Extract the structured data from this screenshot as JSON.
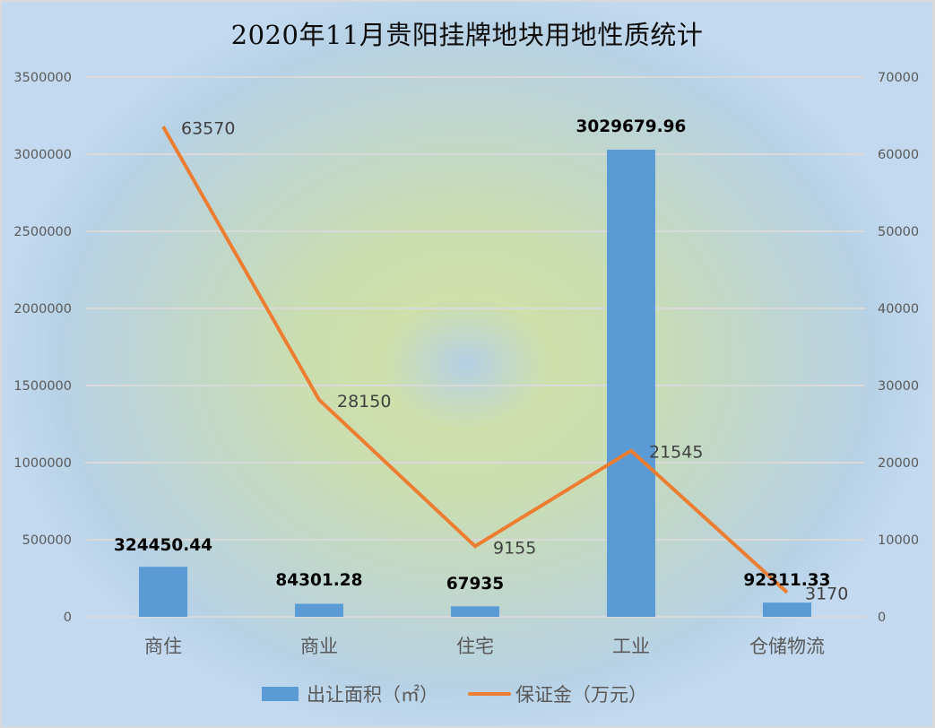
{
  "title": "2020年11月贵阳挂牌地块用地性质统计",
  "colors": {
    "bar": "#5b9bd5",
    "line": "#ed7d31",
    "gridline": "#d9d9d9",
    "axis_text": "#595959"
  },
  "axes": {
    "left_ticks": [
      "0",
      "500000",
      "1000000",
      "1500000",
      "2000000",
      "2500000",
      "3000000",
      "3500000"
    ],
    "right_ticks": [
      "0",
      "10000",
      "20000",
      "30000",
      "40000",
      "50000",
      "60000",
      "70000"
    ],
    "categories": [
      "商住",
      "商业",
      "住宅",
      "工业",
      "仓储物流"
    ]
  },
  "bar_labels": [
    "324450.44",
    "84301.28",
    "67935",
    "3029679.96",
    "92311.33"
  ],
  "line_labels": [
    "63570",
    "28150",
    "9155",
    "21545",
    "3170"
  ],
  "legend": {
    "bar_label": "出让面积（㎡）",
    "line_label": "保证金（万元）"
  },
  "chart_data": {
    "type": "bar+line",
    "title": "2020年11月贵阳挂牌地块用地性质统计",
    "categories": [
      "商住",
      "商业",
      "住宅",
      "工业",
      "仓储物流"
    ],
    "series": [
      {
        "name": "出让面积（㎡）",
        "type": "bar",
        "axis": "left",
        "values": [
          324450.44,
          84301.28,
          67935,
          3029679.96,
          92311.33
        ]
      },
      {
        "name": "保证金（万元）",
        "type": "line",
        "axis": "right",
        "values": [
          63570,
          28150,
          9155,
          21545,
          3170
        ]
      }
    ],
    "xlabel": "",
    "ylabel": "",
    "ylim": [
      0,
      3500000
    ],
    "y2lim": [
      0,
      70000
    ],
    "y_ticks": [
      0,
      500000,
      1000000,
      1500000,
      2000000,
      2500000,
      3000000,
      3500000
    ],
    "y2_ticks": [
      0,
      10000,
      20000,
      30000,
      40000,
      50000,
      60000,
      70000
    ],
    "grid": true,
    "legend_position": "bottom"
  }
}
